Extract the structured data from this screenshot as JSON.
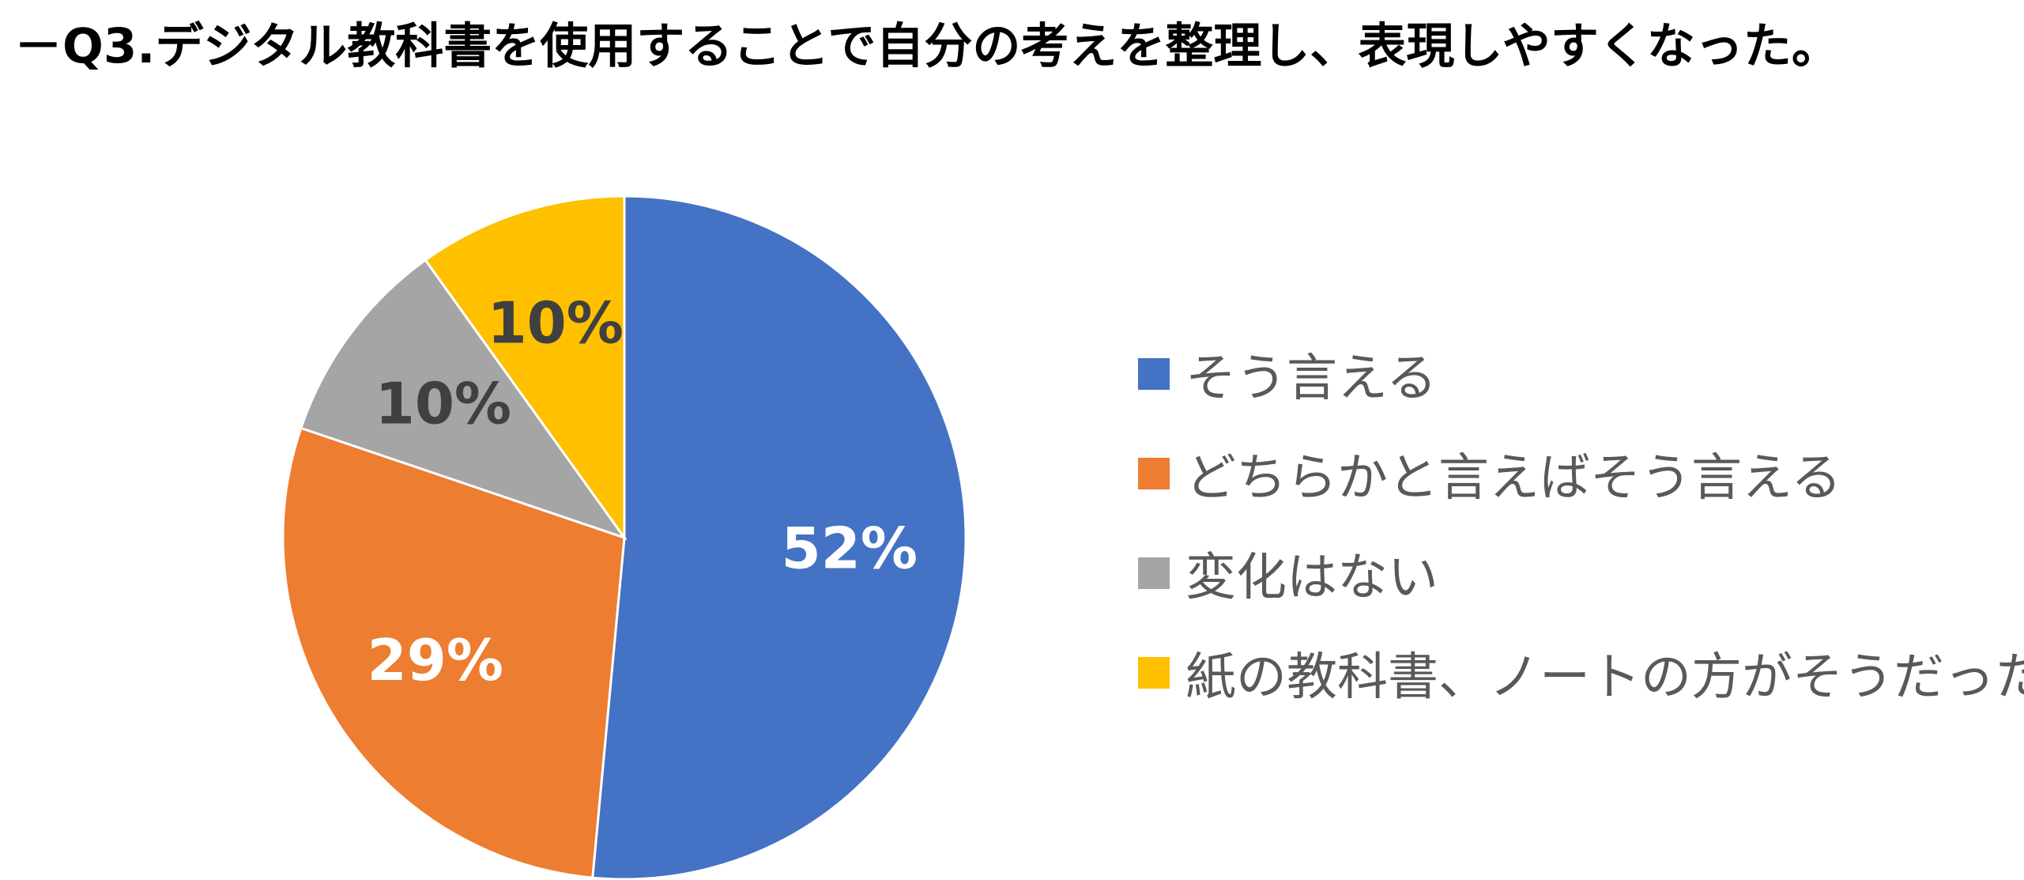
{
  "title": "－Q3.デジタル教科書を使用することで自分の考えを整理し、表現しやすくなった。",
  "chart_data": {
    "type": "pie",
    "title": "－Q3.デジタル教科書を使用することで自分の考えを整理し、表現しやすくなった。",
    "start_angle": "12 o'clock, clockwise",
    "legend_position": "right",
    "slices": [
      {
        "label": "そう言える",
        "value": 52,
        "display": "52%",
        "color": "#4472C4",
        "label_color": "#FFFFFF"
      },
      {
        "label": "どちらかと言えばそう言える",
        "value": 29,
        "display": "29%",
        "color": "#ED7D31",
        "label_color": "#FFFFFF"
      },
      {
        "label": "変化はない",
        "value": 10,
        "display": "10%",
        "color": "#A5A5A5",
        "label_color": "#404040"
      },
      {
        "label": "紙の教科書、ノートの方がそうだった",
        "value": 10,
        "display": "10%",
        "color": "#FFC000",
        "label_color": "#404040"
      }
    ]
  }
}
